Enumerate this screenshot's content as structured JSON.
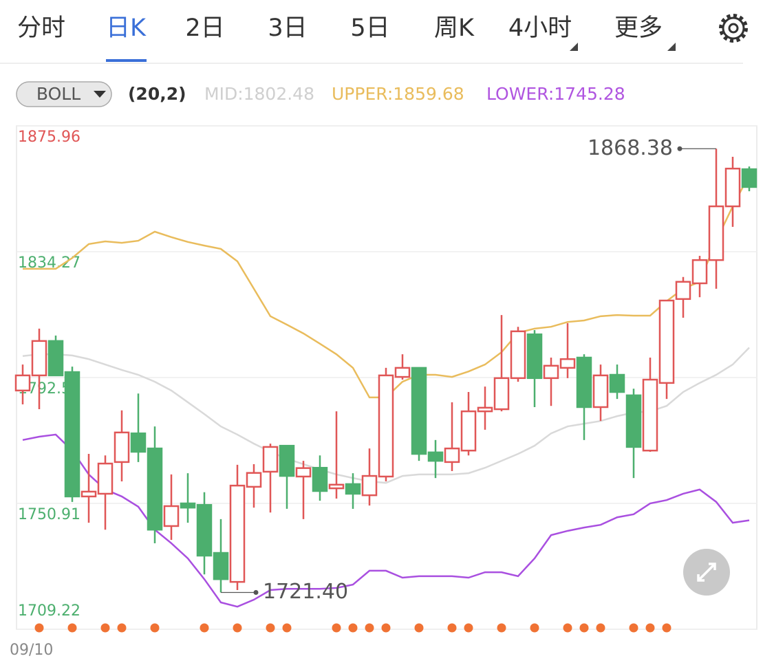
{
  "tabs": [
    "分时",
    "日K",
    "2日",
    "3日",
    "5日",
    "周K",
    "4小时",
    "更多"
  ],
  "active_tab": 1,
  "indicator": {
    "name": "BOLL",
    "params": "(20,2)",
    "mid": "MID:1802.48",
    "upper": "UPPER:1859.68",
    "lower": "LOWER:1745.28"
  },
  "chart_data": {
    "type": "candlestick",
    "categories": [
      "09/10",
      null,
      null,
      null,
      null,
      null,
      null,
      null,
      null,
      null,
      null,
      null,
      null,
      null,
      null,
      null,
      null,
      null,
      null,
      null,
      null,
      null,
      null,
      null,
      null,
      null,
      null,
      null,
      null,
      null,
      null,
      null,
      null,
      null,
      null,
      null,
      null,
      null,
      null,
      null,
      null,
      null,
      null,
      null,
      null
    ],
    "open": [
      1788.3,
      1793.3,
      1804.7,
      1794.4,
      1753.2,
      1754.1,
      1764.6,
      1774.1,
      1769.1,
      1743.4,
      1750.9,
      1750.4,
      1734.5,
      1724.9,
      1756.4,
      1761.4,
      1770.0,
      1759.8,
      1762.7,
      1755.9,
      1757.3,
      1753.6,
      1759.8,
      1792.8,
      1795.8,
      1767.8,
      1764.6,
      1768.4,
      1781.4,
      1782.1,
      1792.4,
      1806.9,
      1792.4,
      1795.8,
      1799.2,
      1782.8,
      1793.5,
      1786.7,
      1768.4,
      1790.8,
      1818.6,
      1823.8,
      1831.5,
      1849.3,
      1861.6
    ],
    "high": [
      1796.9,
      1808.8,
      1806.5,
      1796.2,
      1767.3,
      1766.8,
      1781.7,
      1787.3,
      1776.4,
      1760.5,
      1760.9,
      1754.6,
      1745.7,
      1763.7,
      1763.9,
      1770.7,
      1770.0,
      1765.0,
      1766.8,
      1781.4,
      1760.9,
      1769.1,
      1795.8,
      1800.3,
      1795.8,
      1771.9,
      1784.4,
      1787.8,
      1789.6,
      1813.3,
      1809.4,
      1808.3,
      1799.2,
      1810.6,
      1800.3,
      1796.9,
      1796.9,
      1788.9,
      1799.2,
      1818.1,
      1825.9,
      1832.9,
      1868.38,
      1865.7,
      1862.5
    ],
    "low": [
      1783.7,
      1782.1,
      1793.3,
      1751.4,
      1744.5,
      1742.2,
      1758.2,
      1764.6,
      1737.7,
      1738.8,
      1744.5,
      1727.4,
      1721.4,
      1722.2,
      1749.5,
      1747.9,
      1749.1,
      1745.7,
      1751.8,
      1752.5,
      1749.1,
      1750.2,
      1758.2,
      1791.9,
      1765.0,
      1759.3,
      1761.6,
      1766.8,
      1775.3,
      1781.4,
      1791.2,
      1782.8,
      1783.2,
      1792.4,
      1771.9,
      1778.2,
      1785.5,
      1759.3,
      1768.0,
      1785.5,
      1812.4,
      1819.2,
      1822.0,
      1842.5,
      1854.3
    ],
    "close": [
      1793.3,
      1804.7,
      1793.3,
      1753.2,
      1754.8,
      1764.1,
      1774.4,
      1768.0,
      1742.2,
      1750.0,
      1749.5,
      1733.6,
      1725.8,
      1756.8,
      1761.0,
      1769.6,
      1760.0,
      1762.6,
      1755.0,
      1757.1,
      1754.1,
      1760.0,
      1793.3,
      1795.8,
      1767.3,
      1765.0,
      1769.1,
      1781.4,
      1782.6,
      1792.4,
      1807.9,
      1792.4,
      1796.5,
      1798.7,
      1782.8,
      1793.3,
      1787.8,
      1769.6,
      1791.9,
      1818.1,
      1824.3,
      1831.5,
      1849.3,
      1861.8,
      1855.7
    ],
    "up_color": "#e05656",
    "down_color": "#4caf6e",
    "series": [
      {
        "color": "#d9d9d9",
        "values": [
          1799.7,
          1800.3,
          1800.3,
          1799.9,
          1798.7,
          1796.9,
          1795.1,
          1793.5,
          1791.2,
          1788.3,
          1784.4,
          1780.5,
          1776.4,
          1773.7,
          1770.7,
          1768.0,
          1765.7,
          1763.9,
          1762.1,
          1760.5,
          1759.3,
          1758.2,
          1757.7,
          1760.0,
          1760.5,
          1760.5,
          1760.5,
          1760.9,
          1762.7,
          1765.0,
          1767.3,
          1770.0,
          1774.1,
          1776.4,
          1777.3,
          1778.2,
          1779.8,
          1781.0,
          1781.4,
          1783.2,
          1787.8,
          1790.8,
          1793.5,
          1796.9,
          1802.5
        ]
      },
      {
        "color": "#e9bc5c",
        "values": [
          1828.6,
          1828.6,
          1828.6,
          1832.2,
          1836.8,
          1837.7,
          1837.2,
          1837.9,
          1840.9,
          1839.1,
          1837.5,
          1836.3,
          1835.2,
          1831.1,
          1822.0,
          1812.9,
          1810.1,
          1807.2,
          1803.8,
          1800.3,
          1795.8,
          1786.0,
          1786.0,
          1791.2,
          1793.5,
          1793.5,
          1792.8,
          1794.6,
          1796.9,
          1801.0,
          1807.4,
          1808.8,
          1809.4,
          1811.0,
          1811.5,
          1812.9,
          1813.3,
          1813.1,
          1813.1,
          1817.9,
          1822.0,
          1824.3,
          1837.9,
          1849.3,
          1859.7
        ]
      },
      {
        "color": "#a94fe0",
        "values": [
          1771.9,
          1773.0,
          1773.7,
          1768.4,
          1760.5,
          1755.5,
          1753.2,
          1749.8,
          1742.2,
          1737.7,
          1732.7,
          1725.8,
          1718.1,
          1716.7,
          1719.0,
          1722.2,
          1722.6,
          1722.6,
          1722.6,
          1722.9,
          1724.0,
          1728.6,
          1728.6,
          1726.3,
          1726.8,
          1726.8,
          1726.8,
          1726.3,
          1728.1,
          1728.1,
          1726.8,
          1732.7,
          1740.4,
          1741.8,
          1742.9,
          1743.8,
          1746.3,
          1747.3,
          1750.9,
          1752.0,
          1754.1,
          1755.5,
          1751.4,
          1744.5,
          1745.3
        ]
      }
    ],
    "ylim": [
      1709.22,
      1875.96
    ],
    "yticks": [
      1875.96,
      1834.27,
      1792.59,
      1750.91,
      1709.22
    ],
    "grid": true,
    "annotations": [
      {
        "value": 1868.38,
        "label": "1868.38"
      },
      {
        "value": 1721.4,
        "label": "1721.40"
      }
    ],
    "signal_indices": [
      1,
      3,
      5,
      6,
      8,
      11,
      13,
      15,
      16,
      19,
      20,
      21,
      22,
      24,
      26,
      27,
      29,
      31,
      33,
      34,
      35,
      37,
      38,
      39
    ],
    "signal_color": "#f07234"
  }
}
